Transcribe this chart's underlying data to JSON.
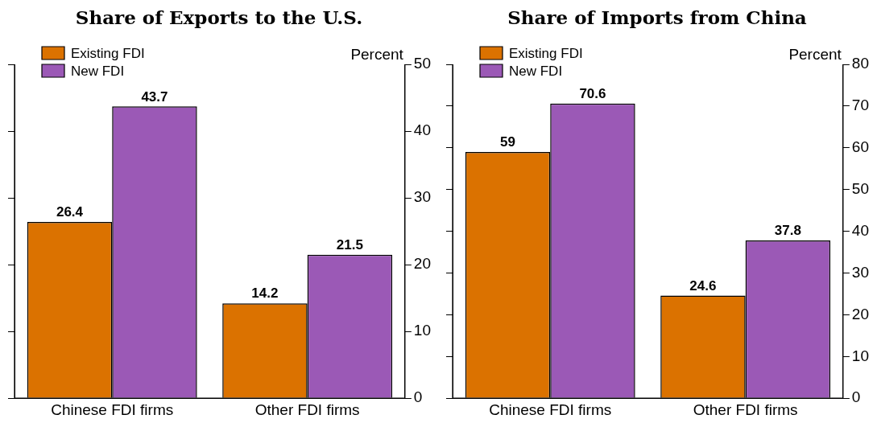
{
  "chart_data": [
    {
      "type": "bar",
      "title": "Share of Exports to the U.S.",
      "ylabel": "Percent",
      "categories": [
        "Chinese FDI firms",
        "Other FDI firms"
      ],
      "series": [
        {
          "name": "Existing FDI",
          "color": "#db7200",
          "values": [
            26.4,
            14.2
          ]
        },
        {
          "name": "New FDI",
          "color": "#9b59b6",
          "values": [
            43.7,
            21.5
          ]
        }
      ],
      "ylim": [
        0,
        50
      ],
      "yticks": [
        0,
        10,
        20,
        30,
        40,
        50
      ],
      "grid": false,
      "legend": "top left",
      "data_labels": true
    },
    {
      "type": "bar",
      "title": "Share of Imports from China",
      "ylabel": "Percent",
      "categories": [
        "Chinese FDI firms",
        "Other FDI firms"
      ],
      "series": [
        {
          "name": "Existing FDI",
          "color": "#db7200",
          "values": [
            59,
            24.6
          ]
        },
        {
          "name": "New FDI",
          "color": "#9b59b6",
          "values": [
            70.6,
            37.8
          ]
        }
      ],
      "ylim": [
        0,
        80
      ],
      "yticks": [
        0,
        10,
        20,
        30,
        40,
        50,
        60,
        70,
        80
      ],
      "grid": false,
      "legend": "top left",
      "data_labels": true
    }
  ]
}
